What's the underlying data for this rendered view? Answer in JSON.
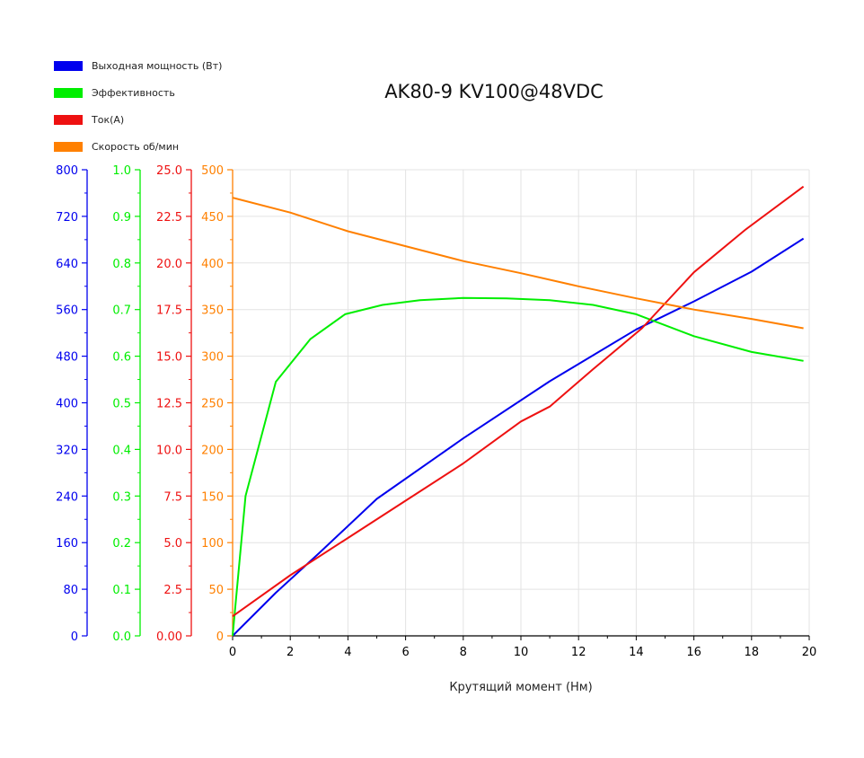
{
  "chart_data": {
    "type": "line",
    "title": "AK80-9 KV100@48VDC",
    "xlabel": "Крутящий момент (Нм)",
    "xlim": [
      0,
      20
    ],
    "x_ticks": [
      "0",
      "2",
      "4",
      "6",
      "8",
      "10",
      "12",
      "14",
      "16",
      "18",
      "20"
    ],
    "grid": true,
    "legend_position": "top-left",
    "axes": [
      {
        "id": "power",
        "color": "#0000ee",
        "lim": [
          0,
          800
        ],
        "ticks": [
          "0",
          "80",
          "160",
          "240",
          "320",
          "400",
          "480",
          "560",
          "640",
          "720",
          "800"
        ]
      },
      {
        "id": "eff",
        "color": "#00ee00",
        "lim": [
          0,
          1.0
        ],
        "ticks": [
          "0.0",
          "0.1",
          "0.2",
          "0.3",
          "0.4",
          "0.5",
          "0.6",
          "0.7",
          "0.8",
          "0.9",
          "1.0"
        ]
      },
      {
        "id": "current",
        "color": "#ee1111",
        "lim": [
          0,
          25
        ],
        "ticks": [
          "0.00",
          "2.5",
          "5.0",
          "7.5",
          "10.0",
          "12.5",
          "15.0",
          "17.5",
          "20.0",
          "22.5",
          "25.0"
        ]
      },
      {
        "id": "speed",
        "color": "#ff8000",
        "lim": [
          0,
          500
        ],
        "ticks": [
          "0",
          "50",
          "100",
          "150",
          "200",
          "250",
          "300",
          "350",
          "400",
          "450",
          "500"
        ]
      }
    ],
    "series": [
      {
        "name": "Выходная мощность (Вт)",
        "color": "#0000ee",
        "axis": "power",
        "x": [
          0,
          1.5,
          3,
          5,
          8,
          11,
          14,
          16,
          18,
          19.8
        ],
        "y": [
          0,
          74,
          142,
          235,
          339,
          437,
          526,
          574,
          625,
          682
        ]
      },
      {
        "name": "Эффективность",
        "color": "#00ee00",
        "axis": "eff",
        "x": [
          0,
          0.45,
          1.5,
          2.7,
          3.9,
          5.2,
          6.5,
          8,
          9.5,
          11,
          12.5,
          14,
          16,
          18,
          19.8
        ],
        "y": [
          0,
          0.3,
          0.545,
          0.637,
          0.69,
          0.71,
          0.72,
          0.725,
          0.724,
          0.72,
          0.71,
          0.69,
          0.643,
          0.609,
          0.59
        ]
      },
      {
        "name": "Ток(A)",
        "color": "#ee1111",
        "axis": "current",
        "x": [
          0,
          2,
          4,
          6,
          8,
          10,
          11,
          12.5,
          14.2,
          16,
          17.8,
          19.8
        ],
        "y": [
          1.05,
          3.25,
          5.25,
          7.25,
          9.25,
          11.5,
          12.3,
          14.3,
          16.5,
          19.5,
          21.8,
          24.1
        ]
      },
      {
        "name": "Скорость об/мин",
        "color": "#ff8000",
        "axis": "speed",
        "x": [
          0,
          2,
          4,
          6,
          8,
          10,
          12,
          14,
          16,
          18,
          19.8
        ],
        "y": [
          470,
          454,
          434,
          418,
          402,
          389,
          375,
          362,
          350,
          340,
          330
        ]
      }
    ]
  }
}
